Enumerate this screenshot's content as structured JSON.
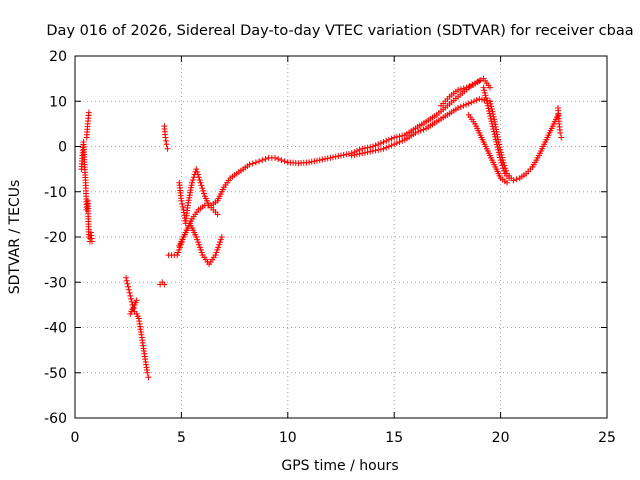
{
  "chart_data": {
    "type": "scatter",
    "title": "Day 016 of 2026, Sidereal Day-to-day VTEC variation (SDTVAR) for receiver cbaa",
    "xlabel": "GPS time / hours",
    "ylabel": "SDTVAR / TECUs",
    "xlim": [
      0,
      25
    ],
    "ylim": [
      -60,
      20
    ],
    "xticks": [
      0,
      5,
      10,
      15,
      20,
      25
    ],
    "yticks": [
      -60,
      -50,
      -40,
      -30,
      -20,
      -10,
      0,
      10,
      20
    ],
    "xtick_labels": [
      "0",
      "5",
      "10",
      "15",
      "20",
      "25"
    ],
    "ytick_labels": [
      "-60",
      "-50",
      "-40",
      "-30",
      "-20",
      "-10",
      "0",
      "10",
      "20"
    ],
    "grid": true,
    "marker": "+",
    "color": "#ff0000",
    "series": [
      {
        "name": "seg_a",
        "x": [
          0.3,
          0.35,
          0.4,
          0.45,
          0.5,
          0.55,
          0.6,
          0.65,
          0.7,
          0.75,
          0.8
        ],
        "y": [
          -5,
          -2,
          1,
          -4,
          -8,
          -14,
          -12,
          -20,
          -21,
          -19,
          -21
        ]
      },
      {
        "name": "seg_a_high",
        "x": [
          0.55,
          0.6,
          0.65
        ],
        "y": [
          2,
          5,
          7.5
        ]
      },
      {
        "name": "seg_b",
        "x": [
          2.4,
          2.5,
          2.6,
          2.7,
          2.8,
          2.9,
          3.0,
          3.1,
          3.2,
          3.3,
          3.4,
          3.45
        ],
        "y": [
          -29,
          -31,
          -33,
          -35,
          -36.5,
          -37,
          -38,
          -41,
          -44,
          -47,
          -50,
          -51
        ]
      },
      {
        "name": "seg_b_side",
        "x": [
          2.6,
          2.7,
          2.8,
          2.9
        ],
        "y": [
          -37,
          -36,
          -35,
          -34
        ]
      },
      {
        "name": "seg_c",
        "x": [
          4.0,
          4.1,
          4.2
        ],
        "y": [
          -30.5,
          -30,
          -30.5
        ]
      },
      {
        "name": "seg_d",
        "x": [
          4.2,
          4.25,
          4.3,
          4.35
        ],
        "y": [
          4.5,
          2,
          0.5,
          -0.5
        ]
      },
      {
        "name": "arc_main_lower",
        "x": [
          4.4,
          4.8,
          5.1,
          5.4,
          5.7,
          6.0,
          6.3,
          6.6,
          6.9
        ],
        "y": [
          -24,
          -24,
          -20,
          -17,
          -20,
          -24,
          -26,
          -24,
          -20
        ]
      },
      {
        "name": "arc_main_rise",
        "x": [
          4.9,
          5.0,
          5.1,
          5.2,
          5.3,
          5.5,
          5.7,
          5.9,
          6.1,
          6.3,
          6.5,
          6.7
        ],
        "y": [
          -8,
          -12,
          -14,
          -17,
          -13,
          -8,
          -5,
          -8,
          -11,
          -13,
          -14,
          -15
        ]
      },
      {
        "name": "arc_main_up",
        "x": [
          4.9,
          5.2,
          5.5,
          5.8,
          6.1,
          6.4,
          6.7,
          7.0,
          7.3,
          7.6,
          7.9,
          8.2,
          8.5,
          8.8,
          9.1,
          9.4,
          9.7,
          10.0
        ],
        "y": [
          -22,
          -19,
          -16,
          -14,
          -13,
          -13,
          -12,
          -9,
          -7,
          -6,
          -5,
          -4,
          -3.5,
          -3,
          -2.5,
          -2.5,
          -3,
          -3.5
        ]
      },
      {
        "name": "mid_band",
        "x": [
          10.0,
          10.5,
          11.0,
          11.5,
          12.0,
          12.5,
          13.0,
          13.5,
          14.0,
          14.5,
          15.0,
          15.5,
          16.0,
          16.5,
          17.0,
          17.5,
          18.0,
          18.5,
          19.0
        ],
        "y": [
          -3.5,
          -3.7,
          -3.5,
          -3,
          -2.5,
          -2,
          -1.5,
          -0.5,
          0,
          1,
          2,
          2.5,
          4,
          5.5,
          7,
          9,
          11,
          13,
          14.5
        ]
      },
      {
        "name": "mid_band_low",
        "x": [
          13.0,
          13.5,
          14.0,
          14.5,
          15.0,
          15.5,
          16.0,
          16.5,
          17.0,
          17.5,
          18.0,
          18.5,
          19.0,
          19.5
        ],
        "y": [
          -2,
          -1.5,
          -1,
          -0.5,
          0.5,
          1.5,
          3,
          4,
          5.5,
          7,
          8.5,
          9.5,
          10.5,
          10
        ]
      },
      {
        "name": "peak_up",
        "x": [
          17.2,
          17.6,
          18.0,
          18.4,
          18.8,
          19.2,
          19.5
        ],
        "y": [
          9,
          11,
          12.5,
          13,
          14,
          15,
          13
        ]
      },
      {
        "name": "descent_a",
        "x": [
          19.2,
          19.4,
          19.6,
          19.8,
          20.0,
          20.2,
          20.4
        ],
        "y": [
          13,
          9,
          5,
          1,
          -3,
          -6,
          -7
        ]
      },
      {
        "name": "descent_b",
        "x": [
          18.5,
          18.8,
          19.1,
          19.4,
          19.7,
          20.0,
          20.3
        ],
        "y": [
          7,
          5,
          2,
          -1,
          -4,
          -7,
          -8
        ]
      },
      {
        "name": "descent_c",
        "x": [
          19.5,
          19.7,
          19.9,
          20.1,
          20.3
        ],
        "y": [
          10,
          6,
          1,
          -3,
          -6
        ]
      },
      {
        "name": "trough",
        "x": [
          20.3,
          20.6,
          20.9,
          21.2,
          21.5
        ],
        "y": [
          -6,
          -7.5,
          -7,
          -6,
          -4.5
        ]
      },
      {
        "name": "recovery",
        "x": [
          21.5,
          21.8,
          22.1,
          22.4,
          22.7
        ],
        "y": [
          -4.5,
          -2,
          1,
          4,
          7
        ]
      },
      {
        "name": "end",
        "x": [
          22.7,
          22.75,
          22.8,
          22.85
        ],
        "y": [
          8.5,
          5,
          3,
          2
        ]
      }
    ]
  }
}
